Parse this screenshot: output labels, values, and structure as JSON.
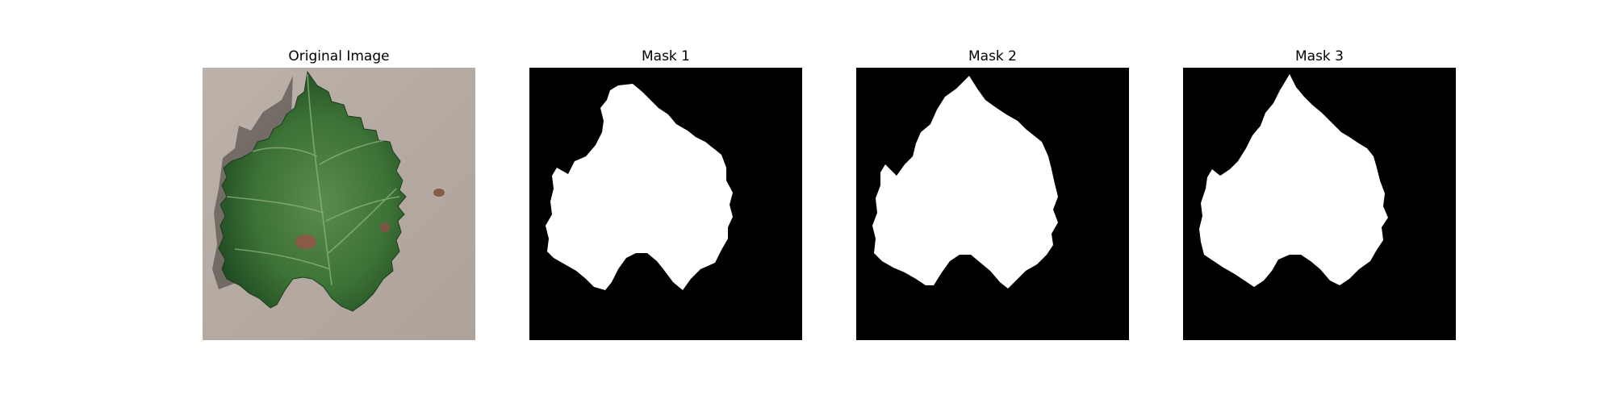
{
  "panels": [
    {
      "title": "Original Image"
    },
    {
      "title": "Mask 1"
    },
    {
      "title": "Mask 2"
    },
    {
      "title": "Mask 3"
    }
  ],
  "colors": {
    "background": "#ffffff",
    "paper": "#b9aea6",
    "leaf_dark": "#1f4a22",
    "leaf_mid": "#3c7235",
    "leaf_light": "#5a8c4d",
    "lesion": "#8a5a48",
    "mask_bg": "#000000",
    "mask_fg": "#ffffff"
  }
}
